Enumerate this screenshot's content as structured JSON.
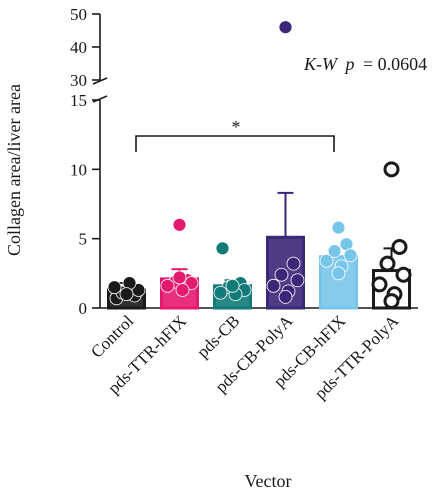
{
  "chart_data": {
    "type": "bar",
    "xlabel": "Vector",
    "ylabel": "Collagen area/liver area",
    "categories": [
      "Control",
      "pds-TTR-hFIX",
      "pds-CB",
      "pds-CB-PolyA",
      "pds-CB-hFIX",
      "pds-TTR-PolyA"
    ],
    "y_axis_broken": true,
    "lower_segment": {
      "ylim": [
        0,
        15
      ],
      "ticks": [
        "0",
        "5",
        "10",
        "15"
      ]
    },
    "upper_segment": {
      "ylim": [
        30,
        50
      ],
      "ticks": [
        "30",
        "40",
        "50"
      ]
    },
    "annotation": {
      "prefix": "K-W",
      "p_label": "p",
      "p_value": "= 0.0604"
    },
    "significance": {
      "from": "Control",
      "to": "pds-CB-hFIX",
      "symbol": "*"
    },
    "series": [
      {
        "category": "Control",
        "color": "#1a1a1a",
        "filled": true,
        "mean": 1.3,
        "sd": 0.5,
        "points": [
          0.7,
          0.9,
          1.1,
          1.3,
          1.5,
          1.8,
          1.0
        ]
      },
      {
        "category": "pds-TTR-hFIX",
        "color": "#e5196e",
        "filled": true,
        "mean": 2.1,
        "sd": 0.7,
        "points": [
          6.0,
          2.0,
          1.9,
          1.8,
          1.6,
          1.3,
          2.2
        ]
      },
      {
        "category": "pds-CB",
        "color": "#127a78",
        "filled": true,
        "mean": 1.6,
        "sd": 0.4,
        "points": [
          4.3,
          1.8,
          1.5,
          1.3,
          1.1,
          1.0,
          1.6
        ]
      },
      {
        "category": "pds-CB-PolyA",
        "color": "#3b2678",
        "filled": true,
        "mean": 5.1,
        "sd": 3.2,
        "points": [
          46.0,
          3.2,
          2.4,
          2.0,
          1.6,
          1.2,
          0.8
        ]
      },
      {
        "category": "pds-CB-hFIX",
        "color": "#78c5ea",
        "filled": true,
        "mean": 3.7,
        "sd": 0.7,
        "points": [
          5.8,
          4.6,
          4.1,
          3.8,
          3.4,
          3.0,
          2.5
        ]
      },
      {
        "category": "pds-TTR-PolyA",
        "color": "#1a1a1a",
        "filled": false,
        "mean": 2.7,
        "sd": 1.6,
        "points": [
          10.0,
          4.4,
          3.2,
          2.4,
          1.7,
          1.0,
          0.5
        ]
      }
    ]
  }
}
